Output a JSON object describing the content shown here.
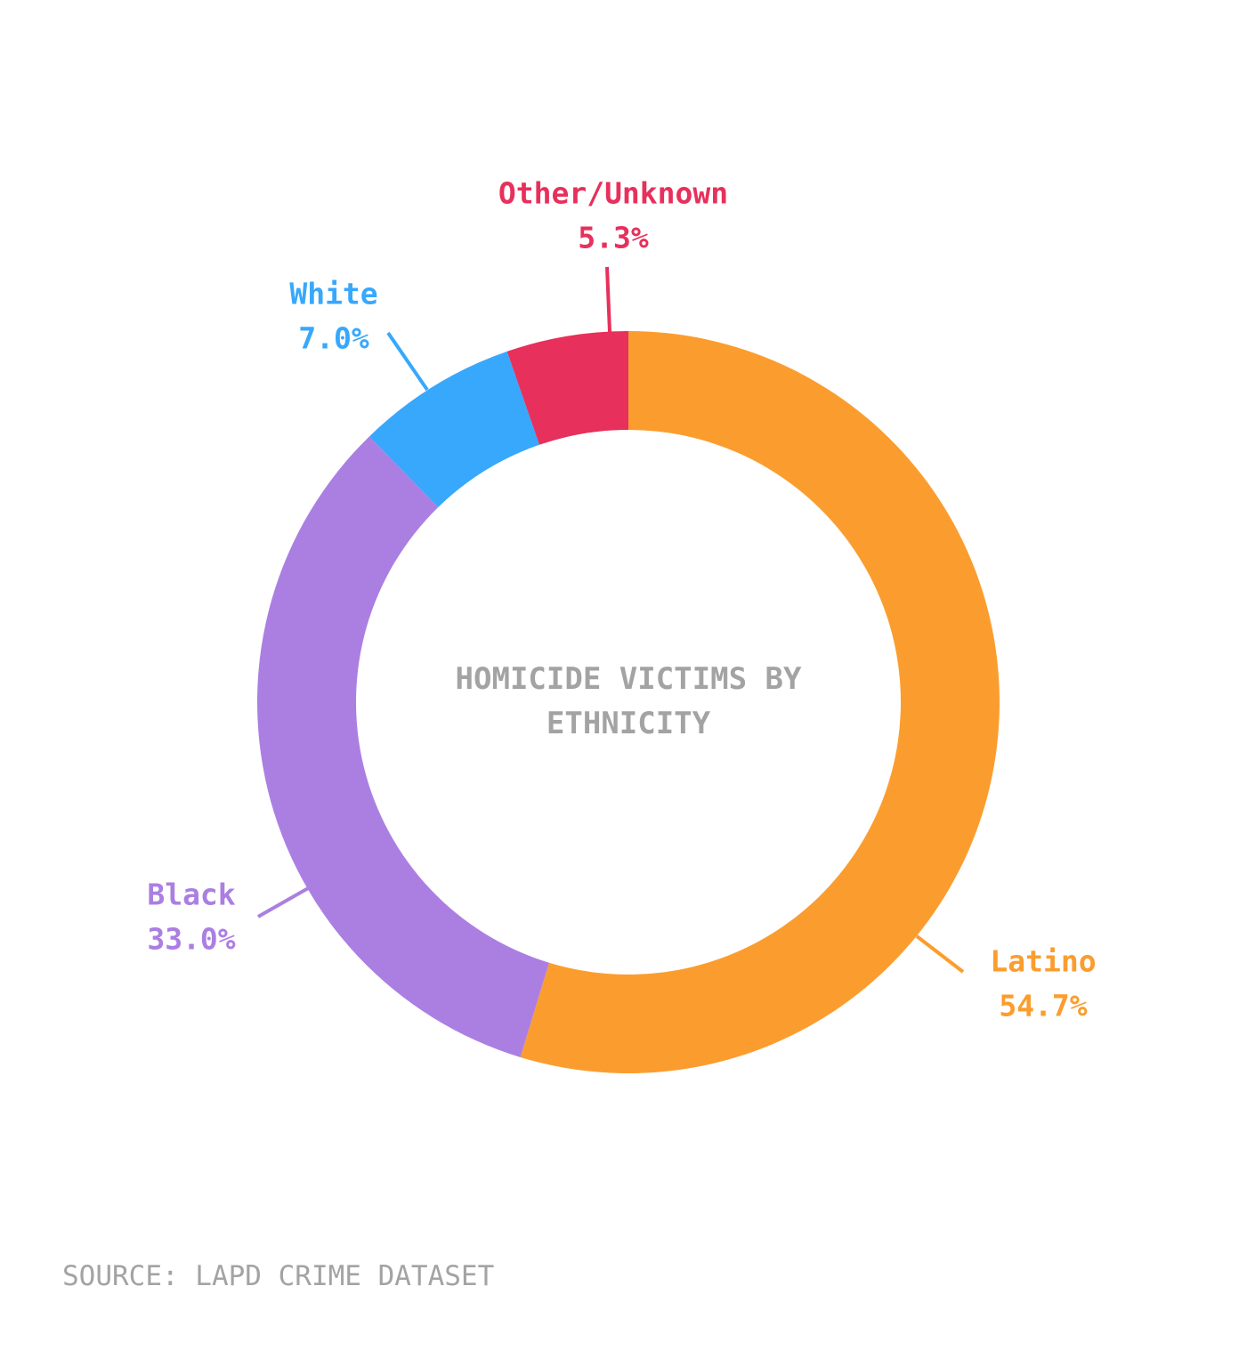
{
  "chart_data": {
    "type": "donut",
    "title": "HOMICIDE VICTIMS BY ETHNICITY",
    "source": "SOURCE: LAPD CRIME DATASET",
    "categories": [
      "Latino",
      "Black",
      "White",
      "Other/Unknown"
    ],
    "values": [
      54.7,
      33.0,
      7.0,
      5.3
    ],
    "value_labels": [
      "54.7%",
      "33.0%",
      "7.0%",
      "5.3%"
    ],
    "colors": [
      "#fb9d2e",
      "#ab7fe2",
      "#37a8fc",
      "#e7305b"
    ]
  }
}
